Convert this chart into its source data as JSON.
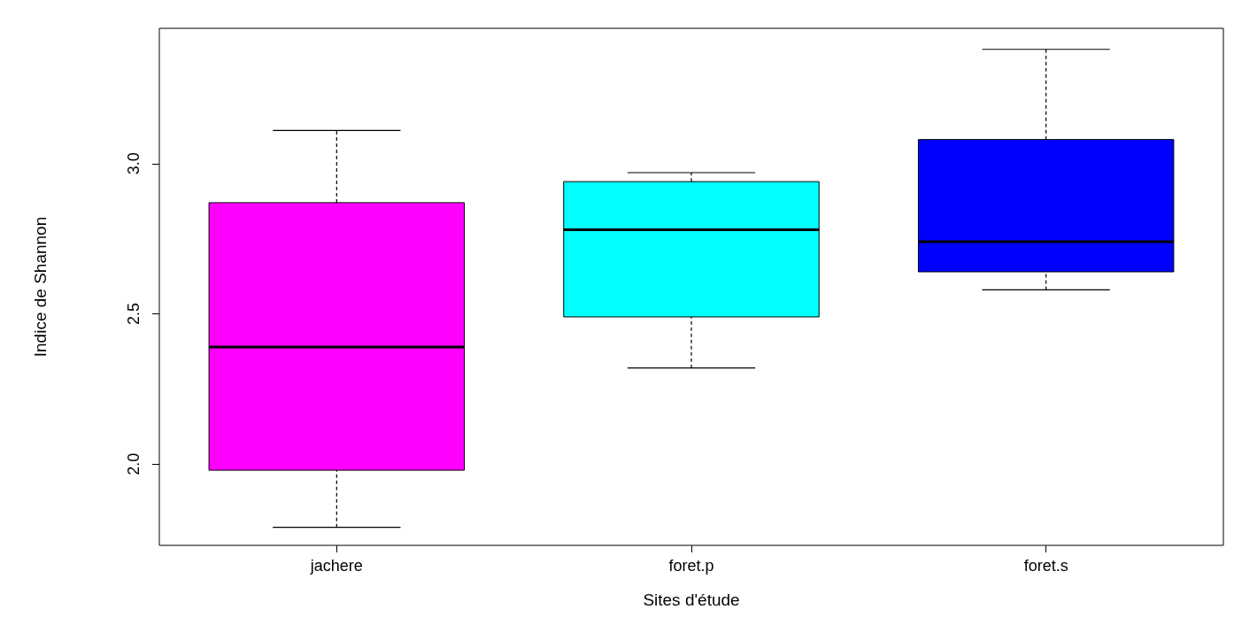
{
  "chart_data": {
    "type": "box",
    "xlabel": "Sites d'étude",
    "ylabel": "Indice de Shannon",
    "categories": [
      "jachere",
      "foret.p",
      "foret.s"
    ],
    "boxes": [
      {
        "low": 1.79,
        "q1": 1.98,
        "median": 2.39,
        "q3": 2.87,
        "high": 3.11
      },
      {
        "low": 2.32,
        "q1": 2.49,
        "median": 2.78,
        "q3": 2.94,
        "high": 2.97
      },
      {
        "low": 2.58,
        "q1": 2.64,
        "median": 2.74,
        "q3": 3.08,
        "high": 3.38
      }
    ],
    "colors": [
      "#ff00ff",
      "#00ffff",
      "#0000ff"
    ],
    "ylim": [
      1.73,
      3.45
    ],
    "yticks": [
      {
        "value": 2,
        "label": "2.0"
      },
      2.5,
      {
        "value": 3,
        "label": "3.0"
      }
    ]
  }
}
